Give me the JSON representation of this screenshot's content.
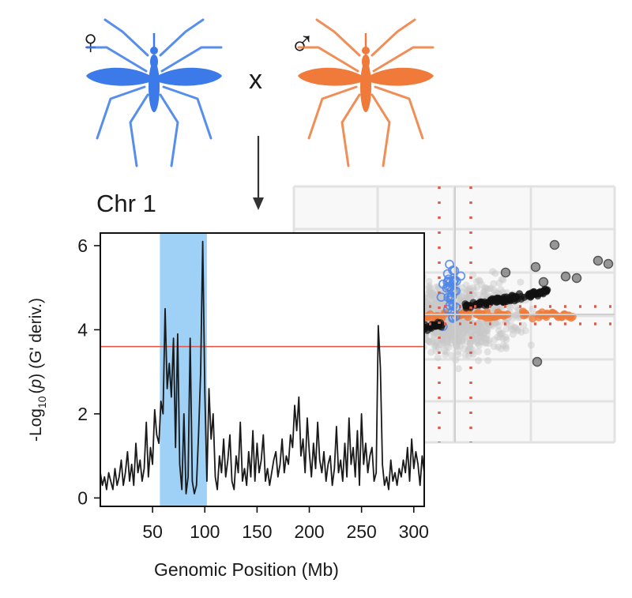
{
  "figure": {
    "female_symbol": "♀",
    "male_symbol": "♂",
    "cross_symbol": "x",
    "chromosome_label": "Chr 1",
    "female_color": "#3b7ae8",
    "male_color": "#ef7a3a",
    "icons": {
      "female": "mosquito-icon",
      "male": "mosquito-icon",
      "arrow": "arrow-down-icon"
    }
  },
  "chart_data": [
    {
      "type": "line",
      "title": "Chr 1",
      "xlabel": "Genomic Position (Mb)",
      "ylabel_parts": [
        "-Log",
        "10",
        "(",
        "p",
        ") (G' deriv.)"
      ],
      "xlim": [
        0,
        310
      ],
      "ylim": [
        -0.2,
        6.3
      ],
      "xticks": [
        50,
        100,
        150,
        200,
        250,
        300
      ],
      "yticks": [
        0,
        2,
        4,
        6
      ],
      "threshold": 3.6,
      "threshold_color": "#e05a4a",
      "highlight_region": [
        57,
        102
      ],
      "highlight_color": "#9fd0f5",
      "line_color": "#1a1a1a",
      "series": [
        {
          "x": [
            0,
            2,
            4,
            6,
            8,
            10,
            12,
            14,
            16,
            18,
            20,
            22,
            24,
            26,
            28,
            30,
            32,
            34,
            36,
            38,
            40,
            42,
            44,
            46,
            48,
            50,
            52,
            54,
            56,
            58,
            60,
            62,
            64,
            66,
            68,
            70,
            72,
            74,
            76,
            78,
            80,
            82,
            84,
            86,
            88,
            90,
            92,
            94,
            96,
            98,
            100,
            102,
            104,
            106,
            108,
            110,
            112,
            114,
            116,
            118,
            120,
            122,
            124,
            126,
            128,
            130,
            132,
            134,
            136,
            138,
            140,
            142,
            144,
            146,
            148,
            150,
            152,
            154,
            156,
            158,
            160,
            162,
            164,
            166,
            168,
            170,
            172,
            174,
            176,
            178,
            180,
            182,
            184,
            186,
            188,
            190,
            192,
            194,
            196,
            198,
            200,
            202,
            204,
            206,
            208,
            210,
            212,
            214,
            216,
            218,
            220,
            222,
            224,
            226,
            228,
            230,
            232,
            234,
            236,
            238,
            240,
            242,
            244,
            246,
            248,
            250,
            252,
            254,
            256,
            258,
            260,
            262,
            264,
            266,
            268,
            270,
            272,
            274,
            276,
            278,
            280,
            282,
            284,
            286,
            288,
            290,
            292,
            294,
            296,
            298,
            300,
            302,
            304,
            306,
            308,
            310
          ],
          "y": [
            0.6,
            0.3,
            0.5,
            0.2,
            0.6,
            0.4,
            0.2,
            0.7,
            0.3,
            0.5,
            0.9,
            0.3,
            0.6,
            1.1,
            0.4,
            0.8,
            0.3,
            1.3,
            0.6,
            0.9,
            0.4,
            0.7,
            1.8,
            0.5,
            1.2,
            0.8,
            2.1,
            1.5,
            1.3,
            2.3,
            2.0,
            4.5,
            2.6,
            3.2,
            2.4,
            3.8,
            1.2,
            3.9,
            0.8,
            0.2,
            2.0,
            0.1,
            0.5,
            3.8,
            0.4,
            0.1,
            0.3,
            1.5,
            3.0,
            6.1,
            2.5,
            0.4,
            2.6,
            1.4,
            2.0,
            0.5,
            0.2,
            1.0,
            0.6,
            1.4,
            0.5,
            0.9,
            1.5,
            0.4,
            0.2,
            1.0,
            0.6,
            1.8,
            0.4,
            0.7,
            0.3,
            1.1,
            0.5,
            1.6,
            0.4,
            1.3,
            0.6,
            0.9,
            1.5,
            0.4,
            0.7,
            0.3,
            0.6,
            0.9,
            1.1,
            0.5,
            0.8,
            1.4,
            0.6,
            1.0,
            0.8,
            1.5,
            1.2,
            2.2,
            1.6,
            2.4,
            1.0,
            1.4,
            0.6,
            1.9,
            1.1,
            0.5,
            1.3,
            0.7,
            1.8,
            0.9,
            0.6,
            1.1,
            0.4,
            0.8,
            1.0,
            0.3,
            0.7,
            1.7,
            0.6,
            0.9,
            0.4,
            1.3,
            0.5,
            1.9,
            0.8,
            1.2,
            0.5,
            1.6,
            0.3,
            2.0,
            0.8,
            1.3,
            0.6,
            1.0,
            1.2,
            0.4,
            0.6,
            4.1,
            3.1,
            0.8,
            0.3,
            0.5,
            0.2,
            0.9,
            0.4,
            0.6,
            0.3,
            0.7,
            0.5,
            0.9,
            0.6,
            1.2,
            0.4,
            1.4,
            0.7,
            1.1,
            0.8,
            0.3,
            1.0,
            0.6
          ]
        }
      ]
    },
    {
      "type": "scatter",
      "title": "",
      "xlabel": "",
      "ylabel": "",
      "grid": true,
      "ref_lines_color": "#e05a4a",
      "colors": {
        "background": "#c8c8c8",
        "highlight_black": "#111111",
        "female": "#4f86ea",
        "male": "#ef7a3a"
      }
    }
  ]
}
